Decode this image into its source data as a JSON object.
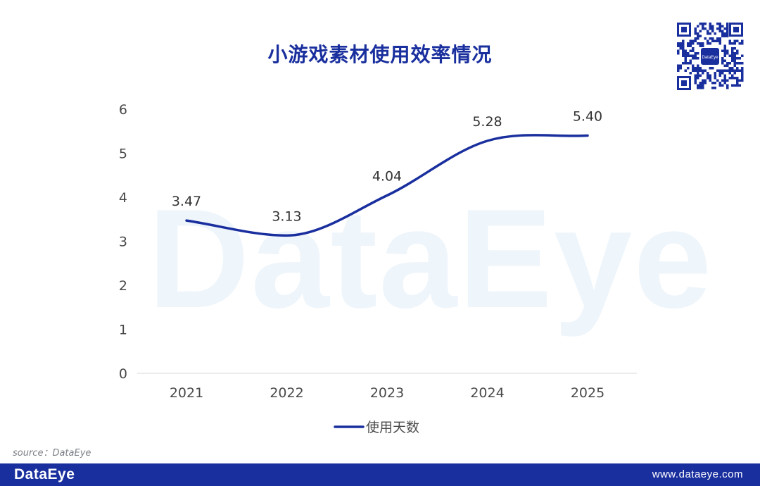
{
  "watermark": "DataEye",
  "qr_logo_text": "DataEye",
  "source": "source：DataEye",
  "footer": {
    "brand": "DataEye",
    "site": "www.dataeye.com",
    "background": "#1a2f9e"
  },
  "colors": {
    "line": "#1a2f9e",
    "title": "#1a2f9e",
    "axis_text": "#4a4a4a",
    "watermark": "#eef5fb"
  },
  "chart_data": {
    "type": "line",
    "title": "小游戏素材使用效率情况",
    "categories": [
      "2021",
      "2022",
      "2023",
      "2024",
      "2025"
    ],
    "series": [
      {
        "name": "使用天数",
        "values": [
          3.47,
          3.13,
          4.04,
          5.28,
          5.4
        ],
        "color": "#1a2f9e"
      }
    ],
    "data_labels": [
      "3.47",
      "3.13",
      "4.04",
      "5.28",
      "5.40"
    ],
    "ylim": [
      0,
      6
    ],
    "yticks": [
      "0",
      "1",
      "2",
      "3",
      "4",
      "5",
      "6"
    ],
    "smooth": true,
    "grid": false,
    "legend_position": "bottom"
  }
}
